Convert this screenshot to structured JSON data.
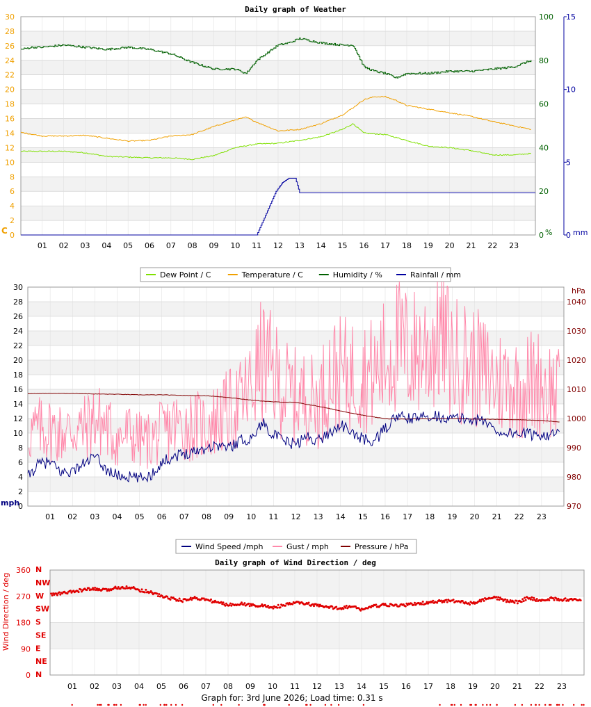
{
  "footer": "Graph for: 3rd June 2026; Load time: 0.31 s",
  "colors": {
    "dew": "#7fe000",
    "temp": "#f0a000",
    "hum": "#006000",
    "rain": "#0000a0",
    "wind": "#000080",
    "gust": "#ff88aa",
    "press": "#800000",
    "dir": "#e00000",
    "grid": "#c8c8c8",
    "band": "#f2f2f2",
    "frame": "#999999"
  },
  "chart_data": [
    {
      "id": "weather",
      "type": "line",
      "title": "Daily graph of Weather",
      "x_ticks": [
        "01",
        "02",
        "03",
        "04",
        "05",
        "06",
        "07",
        "08",
        "09",
        "10",
        "11",
        "12",
        "13",
        "14",
        "15",
        "16",
        "17",
        "18",
        "19",
        "20",
        "21",
        "22",
        "23"
      ],
      "x_range": [
        0,
        24
      ],
      "y_left": {
        "unit": "C",
        "range": [
          0,
          30
        ],
        "ticks": [
          0,
          2,
          4,
          6,
          8,
          10,
          12,
          14,
          16,
          18,
          20,
          22,
          24,
          26,
          28,
          30
        ]
      },
      "y_right1": {
        "unit": "%",
        "range": [
          0,
          100
        ],
        "ticks": [
          0,
          20,
          40,
          60,
          80,
          100
        ]
      },
      "y_right2": {
        "unit": "mm",
        "range": [
          0,
          15
        ],
        "ticks": [
          0,
          5,
          10,
          15
        ]
      },
      "legend": [
        "Dew Point / C",
        "Temperature / C",
        "Humidity / %",
        "Rainfall / mm"
      ],
      "series": [
        {
          "name": "Dew Point / C",
          "axis": "left",
          "color": "#7fe000",
          "x": [
            0,
            1,
            2,
            3,
            4,
            5,
            6,
            7,
            8,
            9,
            10,
            11,
            12,
            13,
            14,
            15,
            15.5,
            16,
            17,
            18,
            19,
            20,
            21,
            22,
            23,
            23.8
          ],
          "y": [
            11.5,
            11.5,
            11.5,
            11.3,
            10.8,
            10.7,
            10.6,
            10.6,
            10.4,
            10.9,
            12,
            12.5,
            12.6,
            13,
            13.5,
            14.5,
            15.3,
            14,
            13.8,
            13,
            12.2,
            12,
            11.6,
            11,
            11,
            11.2
          ]
        },
        {
          "name": "Temperature / C",
          "axis": "left",
          "color": "#f0a000",
          "x": [
            0,
            1,
            2,
            3,
            4,
            5,
            6,
            7,
            8,
            9,
            10,
            10.5,
            11,
            12,
            13,
            14,
            15,
            15.5,
            16,
            16.5,
            17,
            17.5,
            18,
            19,
            20,
            21,
            22,
            23,
            23.8
          ],
          "y": [
            14.1,
            13.6,
            13.6,
            13.7,
            13.3,
            12.9,
            13.0,
            13.6,
            13.8,
            14.9,
            15.8,
            16.2,
            15.5,
            14.3,
            14.5,
            15.3,
            16.5,
            17.5,
            18.6,
            19.0,
            19.0,
            18.5,
            17.8,
            17.3,
            16.8,
            16.3,
            15.6,
            15.0,
            14.5
          ]
        },
        {
          "name": "Humidity / %",
          "axis": "right1",
          "color": "#006000",
          "x": [
            0,
            0.5,
            1,
            2,
            3,
            4,
            5,
            6,
            7,
            7.5,
            8,
            9,
            10,
            10.5,
            11,
            12,
            12.5,
            13,
            13.5,
            14,
            15,
            15.5,
            16,
            16.5,
            17,
            17.5,
            18,
            19,
            20,
            21,
            22,
            23,
            23.8
          ],
          "y": [
            85,
            86,
            86,
            87,
            86,
            85,
            86,
            85,
            83,
            81,
            79,
            76,
            76,
            74,
            80,
            87,
            88,
            90,
            89,
            88,
            87,
            87,
            77,
            75,
            74,
            72,
            74,
            74,
            75,
            75,
            76,
            77,
            80
          ]
        },
        {
          "name": "Rainfall / mm",
          "axis": "right2",
          "color": "#0000a0",
          "x": [
            0,
            11,
            11.3,
            11.6,
            11.9,
            12.2,
            12.5,
            12.8,
            13,
            24
          ],
          "y": [
            0,
            0,
            1,
            2,
            3,
            3.6,
            3.9,
            3.9,
            2.9,
            2.9
          ]
        }
      ]
    },
    {
      "id": "wind",
      "type": "line",
      "title": "",
      "x_ticks": [
        "01",
        "02",
        "03",
        "04",
        "05",
        "06",
        "07",
        "08",
        "09",
        "10",
        "11",
        "12",
        "13",
        "14",
        "15",
        "16",
        "17",
        "18",
        "19",
        "20",
        "21",
        "22",
        "23"
      ],
      "x_range": [
        0,
        24
      ],
      "y_left": {
        "unit": "mph",
        "range": [
          0,
          30
        ],
        "ticks": [
          0,
          2,
          4,
          6,
          8,
          10,
          12,
          14,
          16,
          18,
          20,
          22,
          24,
          26,
          28,
          30
        ]
      },
      "y_right": {
        "unit": "hPa",
        "range": [
          970,
          1045
        ],
        "ticks": [
          970,
          980,
          990,
          1000,
          1010,
          1020,
          1030,
          1040
        ]
      },
      "legend": [
        "Wind Speed /mph",
        "Gust / mph",
        "Pressure / hPa"
      ],
      "series": [
        {
          "name": "Wind Speed /mph",
          "axis": "left",
          "color": "#000080",
          "x": [
            0,
            0.5,
            1,
            1.5,
            2,
            2.5,
            3,
            3.5,
            4,
            4.5,
            5,
            5.5,
            6,
            6.5,
            7,
            7.5,
            8,
            8.5,
            9,
            9.5,
            10,
            10.5,
            11,
            11.5,
            12,
            12.5,
            13,
            13.5,
            14,
            14.5,
            15,
            15.5,
            16,
            16.5,
            17,
            17.5,
            18,
            18.5,
            19,
            19.5,
            20,
            20.5,
            21,
            21.5,
            22,
            22.5,
            23,
            23.8
          ],
          "y": [
            4,
            5.8,
            6,
            4.6,
            4.8,
            5.8,
            6.8,
            5.0,
            4.2,
            4.0,
            3.8,
            4.2,
            6.0,
            6.8,
            7.2,
            7.6,
            8.0,
            8.4,
            8.0,
            9.0,
            9.2,
            11.5,
            9.8,
            8.8,
            8.5,
            9.5,
            9.0,
            10,
            11.2,
            10,
            9.2,
            8.8,
            10.6,
            12.3,
            12.0,
            12.0,
            12.5,
            12.2,
            12.0,
            12.0,
            11.8,
            11.6,
            10.2,
            10.0,
            10.0,
            9.8,
            9.8,
            9.8
          ]
        },
        {
          "name": "Gust / mph",
          "axis": "left",
          "color": "#ff88aa",
          "x": [
            0,
            0.5,
            1,
            1.5,
            2,
            2.5,
            3,
            3.5,
            4,
            4.5,
            5,
            5.5,
            6,
            6.5,
            7,
            7.5,
            8,
            8.5,
            9,
            9.5,
            10,
            10.5,
            11,
            11.5,
            12,
            12.5,
            13,
            13.5,
            14,
            14.5,
            15,
            15.5,
            16,
            16.5,
            17,
            17.5,
            18,
            18.5,
            19,
            19.5,
            20,
            20.5,
            21,
            21.5,
            22,
            22.5,
            23,
            23.8
          ],
          "y": [
            10,
            10.5,
            10.5,
            10,
            10.5,
            10.5,
            12,
            11,
            9,
            10,
            9,
            9,
            10,
            11,
            11,
            11,
            11,
            12,
            13,
            14,
            16,
            20,
            18,
            16,
            15,
            15,
            14,
            18,
            18,
            18,
            18,
            18,
            20,
            22,
            21,
            21,
            22,
            24,
            20,
            20,
            19,
            18,
            17,
            17,
            16,
            17,
            17,
            15
          ]
        },
        {
          "name": "Pressure / hPa",
          "axis": "right",
          "color": "#800000",
          "x": [
            0,
            1,
            2,
            3,
            4,
            5,
            6,
            7,
            8,
            9,
            10,
            11,
            12,
            13,
            14,
            15,
            16,
            17,
            18,
            19,
            20,
            21,
            22,
            23,
            23.8
          ],
          "y": [
            1008.5,
            1008.6,
            1008.6,
            1008.4,
            1008.3,
            1008.1,
            1008.1,
            1007.9,
            1007.8,
            1007.2,
            1006.3,
            1005.7,
            1005.5,
            1004.2,
            1002.6,
            1001.1,
            999.9,
            999.8,
            999.9,
            1000.0,
            999.8,
            999.7,
            999.6,
            999.3,
            998.8
          ]
        }
      ]
    },
    {
      "id": "direction",
      "type": "scatter",
      "title": "Daily graph of Wind Direction / deg",
      "ylabel": "Wind Direction / deg",
      "x_ticks": [
        "01",
        "02",
        "03",
        "04",
        "05",
        "06",
        "07",
        "08",
        "09",
        "10",
        "11",
        "12",
        "13",
        "14",
        "15",
        "16",
        "17",
        "18",
        "19",
        "20",
        "21",
        "22",
        "23"
      ],
      "x_range": [
        0,
        24
      ],
      "y_range": [
        0,
        360
      ],
      "y_ticks": [
        0,
        90,
        180,
        270,
        360
      ],
      "compass_labels": [
        "N",
        "NE",
        "E",
        "SE",
        "S",
        "SW",
        "W",
        "NW",
        "N"
      ],
      "series": [
        {
          "name": "",
          "color": "#e00000",
          "x": [
            0,
            0.5,
            1,
            1.5,
            2,
            2.5,
            3,
            3.5,
            4,
            4.5,
            5,
            5.5,
            6,
            6.5,
            7,
            7.5,
            8,
            8.5,
            9,
            9.5,
            10,
            10.5,
            11,
            11.5,
            12,
            12.5,
            13,
            13.5,
            14,
            14.5,
            15,
            15.5,
            16,
            16.5,
            17,
            17.5,
            18,
            18.5,
            19,
            19.5,
            20,
            20.5,
            21,
            21.5,
            22,
            22.5,
            23,
            23.8
          ],
          "y": [
            275,
            280,
            285,
            292,
            295,
            290,
            300,
            302,
            292,
            285,
            270,
            262,
            255,
            265,
            258,
            250,
            240,
            245,
            240,
            238,
            232,
            238,
            248,
            245,
            238,
            232,
            230,
            235,
            225,
            235,
            240,
            238,
            240,
            245,
            248,
            252,
            255,
            250,
            245,
            258,
            265,
            255,
            250,
            265,
            255,
            262,
            258,
            260
          ]
        }
      ]
    }
  ]
}
